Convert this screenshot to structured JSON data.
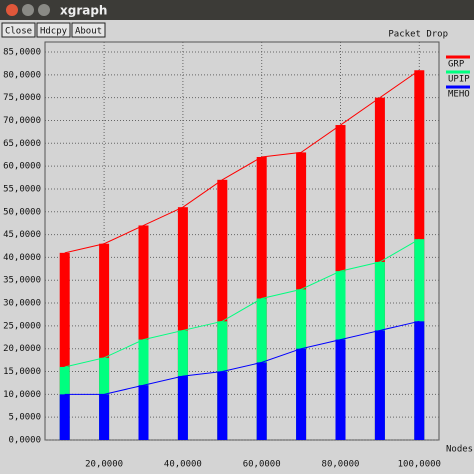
{
  "window": {
    "title": "xgraph",
    "buttons": [
      "Close",
      "Hdcpy",
      "About"
    ]
  },
  "chart_data": {
    "type": "bar",
    "title": "Packet Drop",
    "x_label": "Nodes",
    "x": [
      10000,
      20000,
      30000,
      40000,
      50000,
      60000,
      70000,
      80000,
      90000,
      100000
    ],
    "series": [
      {
        "name": "GRP",
        "color": "#ff0000",
        "values": [
          41000,
          43000,
          47000,
          51000,
          57000,
          62000,
          63000,
          69000,
          75000,
          81000
        ]
      },
      {
        "name": "UPIP",
        "color": "#00ff7f",
        "values": [
          16000,
          18000,
          22000,
          24000,
          26000,
          31000,
          33000,
          37000,
          39000,
          44000
        ]
      },
      {
        "name": "MEHO",
        "color": "#0000ff",
        "values": [
          10000,
          10000,
          12000,
          14000,
          15000,
          17000,
          20000,
          22000,
          24000,
          26000
        ]
      }
    ],
    "xlim": [
      5000,
      105000
    ],
    "xticks": [
      {
        "value": 20000,
        "label": "20,0000"
      },
      {
        "value": 40000,
        "label": "40,0000"
      },
      {
        "value": 60000,
        "label": "60,0000"
      },
      {
        "value": 80000,
        "label": "80,0000"
      },
      {
        "value": 100000,
        "label": "100,0000"
      }
    ],
    "ylim": [
      0,
      85000
    ],
    "yticks": [
      {
        "value": 0,
        "label": "0,0000"
      },
      {
        "value": 5000,
        "label": "5,0000"
      },
      {
        "value": 10000,
        "label": "10,0000"
      },
      {
        "value": 15000,
        "label": "15,0000"
      },
      {
        "value": 20000,
        "label": "20,0000"
      },
      {
        "value": 25000,
        "label": "25,0000"
      },
      {
        "value": 30000,
        "label": "30,0000"
      },
      {
        "value": 35000,
        "label": "35,0000"
      },
      {
        "value": 40000,
        "label": "40,0000"
      },
      {
        "value": 45000,
        "label": "45,0000"
      },
      {
        "value": 50000,
        "label": "50,0000"
      },
      {
        "value": 55000,
        "label": "55,0000"
      },
      {
        "value": 60000,
        "label": "60,0000"
      },
      {
        "value": 65000,
        "label": "65,0000"
      },
      {
        "value": 70000,
        "label": "70,0000"
      },
      {
        "value": 75000,
        "label": "75,0000"
      },
      {
        "value": 80000,
        "label": "80,0000"
      },
      {
        "value": 85000,
        "label": "85,0000"
      }
    ],
    "grid": true
  }
}
